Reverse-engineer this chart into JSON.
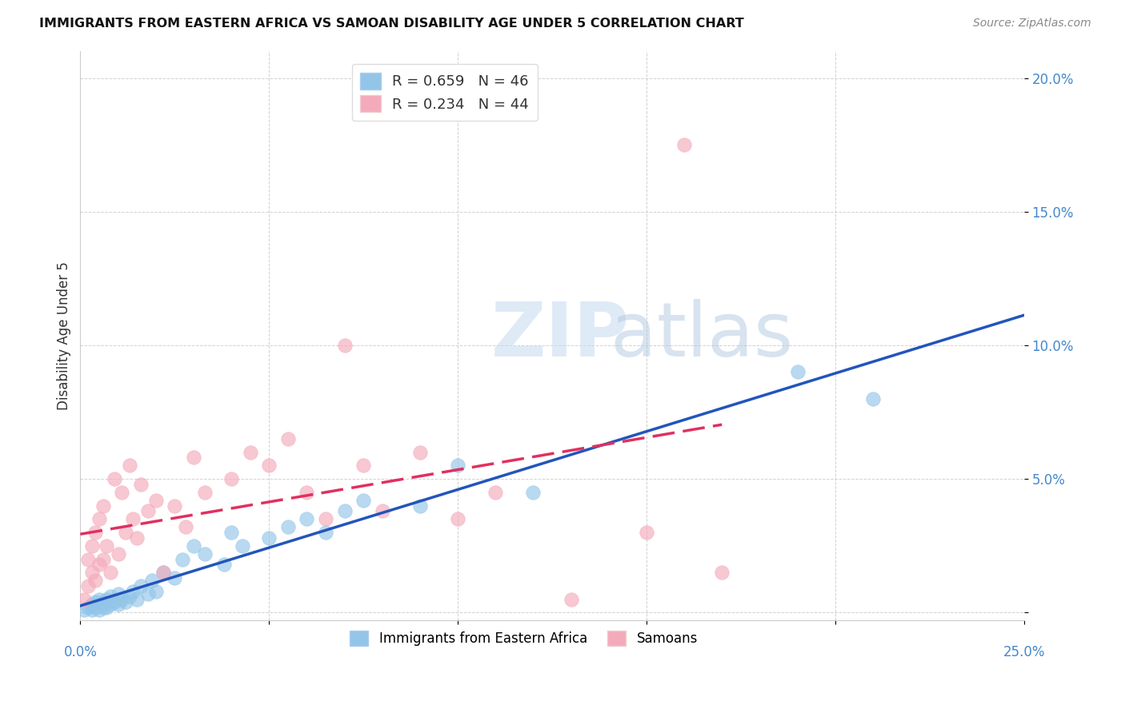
{
  "title": "IMMIGRANTS FROM EASTERN AFRICA VS SAMOAN DISABILITY AGE UNDER 5 CORRELATION CHART",
  "source": "Source: ZipAtlas.com",
  "ylabel": "Disability Age Under 5",
  "xlim": [
    0.0,
    0.25
  ],
  "ylim": [
    -0.003,
    0.21
  ],
  "yticks": [
    0.0,
    0.05,
    0.1,
    0.15,
    0.2
  ],
  "ytick_labels": [
    "",
    "5.0%",
    "10.0%",
    "15.0%",
    "20.0%"
  ],
  "blue_R": 0.659,
  "blue_N": 46,
  "pink_R": 0.234,
  "pink_N": 44,
  "blue_color": "#92C5E8",
  "pink_color": "#F4AABB",
  "blue_line_color": "#2255BB",
  "pink_line_color": "#E03060",
  "legend_label_blue": "Immigrants from Eastern Africa",
  "legend_label_pink": "Samoans",
  "blue_x": [
    0.001,
    0.002,
    0.003,
    0.003,
    0.004,
    0.004,
    0.005,
    0.005,
    0.005,
    0.006,
    0.006,
    0.007,
    0.007,
    0.008,
    0.008,
    0.009,
    0.01,
    0.01,
    0.011,
    0.012,
    0.013,
    0.014,
    0.015,
    0.016,
    0.018,
    0.019,
    0.02,
    0.022,
    0.025,
    0.027,
    0.03,
    0.033,
    0.038,
    0.04,
    0.043,
    0.05,
    0.055,
    0.06,
    0.065,
    0.07,
    0.075,
    0.09,
    0.1,
    0.12,
    0.19,
    0.21
  ],
  "blue_y": [
    0.001,
    0.002,
    0.001,
    0.003,
    0.002,
    0.004,
    0.001,
    0.003,
    0.005,
    0.002,
    0.004,
    0.002,
    0.005,
    0.003,
    0.006,
    0.004,
    0.003,
    0.007,
    0.005,
    0.004,
    0.006,
    0.008,
    0.005,
    0.01,
    0.007,
    0.012,
    0.008,
    0.015,
    0.013,
    0.02,
    0.025,
    0.022,
    0.018,
    0.03,
    0.025,
    0.028,
    0.032,
    0.035,
    0.03,
    0.038,
    0.042,
    0.04,
    0.055,
    0.045,
    0.09,
    0.08
  ],
  "pink_x": [
    0.001,
    0.002,
    0.002,
    0.003,
    0.003,
    0.004,
    0.004,
    0.005,
    0.005,
    0.006,
    0.006,
    0.007,
    0.008,
    0.009,
    0.01,
    0.011,
    0.012,
    0.013,
    0.014,
    0.015,
    0.016,
    0.018,
    0.02,
    0.022,
    0.025,
    0.028,
    0.03,
    0.033,
    0.04,
    0.045,
    0.05,
    0.055,
    0.06,
    0.065,
    0.07,
    0.075,
    0.08,
    0.09,
    0.1,
    0.11,
    0.13,
    0.15,
    0.16,
    0.17
  ],
  "pink_y": [
    0.005,
    0.01,
    0.02,
    0.015,
    0.025,
    0.012,
    0.03,
    0.018,
    0.035,
    0.02,
    0.04,
    0.025,
    0.015,
    0.05,
    0.022,
    0.045,
    0.03,
    0.055,
    0.035,
    0.028,
    0.048,
    0.038,
    0.042,
    0.015,
    0.04,
    0.032,
    0.058,
    0.045,
    0.05,
    0.06,
    0.055,
    0.065,
    0.045,
    0.035,
    0.1,
    0.055,
    0.038,
    0.06,
    0.035,
    0.045,
    0.005,
    0.03,
    0.175,
    0.015
  ]
}
